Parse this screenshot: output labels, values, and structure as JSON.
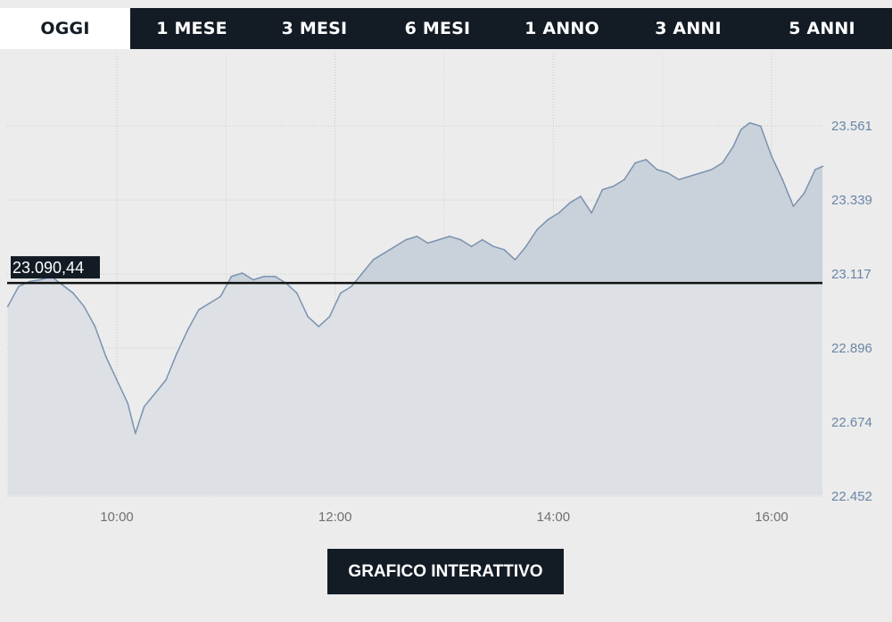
{
  "tabs": [
    {
      "label": "OGGI",
      "active": true
    },
    {
      "label": "1 MESE",
      "active": false
    },
    {
      "label": "3 MESI",
      "active": false
    },
    {
      "label": "6 MESI",
      "active": false
    },
    {
      "label": "1 ANNO",
      "active": false
    },
    {
      "label": "3 ANNI",
      "active": false
    },
    {
      "label": "5 ANNI",
      "active": false
    }
  ],
  "cta": {
    "label": "GRAFICO INTERATTIVO"
  },
  "colors": {
    "dark": "#131c25",
    "line": "#7a93b0",
    "fill_above": "#c9d1da",
    "fill_below": "#dde0e4",
    "ytick": "#6a86a6",
    "background": "#ececec"
  },
  "chart_data": {
    "type": "area",
    "reference": {
      "value": 23090.44,
      "label": "23.090,44"
    },
    "y_ticks": [
      {
        "value": 22452,
        "label": "22.452"
      },
      {
        "value": 22674,
        "label": "22.674"
      },
      {
        "value": 22896,
        "label": "22.896"
      },
      {
        "value": 23117,
        "label": "23.117"
      },
      {
        "value": 23339,
        "label": "23.339"
      },
      {
        "value": 23561,
        "label": "23.561"
      }
    ],
    "x_ticks": [
      {
        "value": 10,
        "label": "10:00"
      },
      {
        "value": 12,
        "label": "12:00"
      },
      {
        "value": 14,
        "label": "14:00"
      },
      {
        "value": 16,
        "label": "16:00"
      }
    ],
    "xlim": [
      9,
      16.5
    ],
    "ylim": [
      22452,
      23670
    ],
    "grid": true,
    "series": [
      {
        "x": [
          9.0,
          9.1,
          9.2,
          9.3,
          9.4,
          9.5,
          9.6,
          9.7,
          9.8,
          9.9,
          10.0,
          10.1,
          10.17,
          10.25,
          10.35,
          10.45,
          10.55,
          10.65,
          10.75,
          10.85,
          10.95,
          11.05,
          11.15,
          11.25,
          11.35,
          11.45,
          11.55,
          11.65,
          11.75,
          11.85,
          11.95,
          12.05,
          12.15,
          12.25,
          12.35,
          12.45,
          12.55,
          12.65,
          12.75,
          12.85,
          12.95,
          13.05,
          13.15,
          13.25,
          13.35,
          13.45,
          13.55,
          13.65,
          13.75,
          13.85,
          13.95,
          14.05,
          14.15,
          14.25,
          14.35,
          14.45,
          14.55,
          14.65,
          14.75,
          14.85,
          14.95,
          15.05,
          15.15,
          15.25,
          15.35,
          15.45,
          15.55,
          15.65,
          15.72,
          15.8,
          15.9,
          16.0,
          16.1,
          16.2,
          16.3,
          16.4,
          16.47
        ],
        "values": [
          23020,
          23080,
          23095,
          23100,
          23110,
          23085,
          23060,
          23020,
          22960,
          22870,
          22800,
          22730,
          22640,
          22720,
          22760,
          22800,
          22880,
          22950,
          23010,
          23030,
          23050,
          23110,
          23120,
          23100,
          23110,
          23110,
          23090,
          23060,
          22990,
          22960,
          22990,
          23060,
          23080,
          23120,
          23160,
          23180,
          23200,
          23220,
          23230,
          23210,
          23220,
          23230,
          23220,
          23200,
          23220,
          23200,
          23190,
          23160,
          23200,
          23250,
          23280,
          23300,
          23330,
          23350,
          23300,
          23370,
          23380,
          23400,
          23450,
          23460,
          23430,
          23420,
          23400,
          23410,
          23420,
          23430,
          23450,
          23500,
          23550,
          23570,
          23560,
          23470,
          23400,
          23320,
          23360,
          23430,
          23440
        ]
      }
    ]
  }
}
